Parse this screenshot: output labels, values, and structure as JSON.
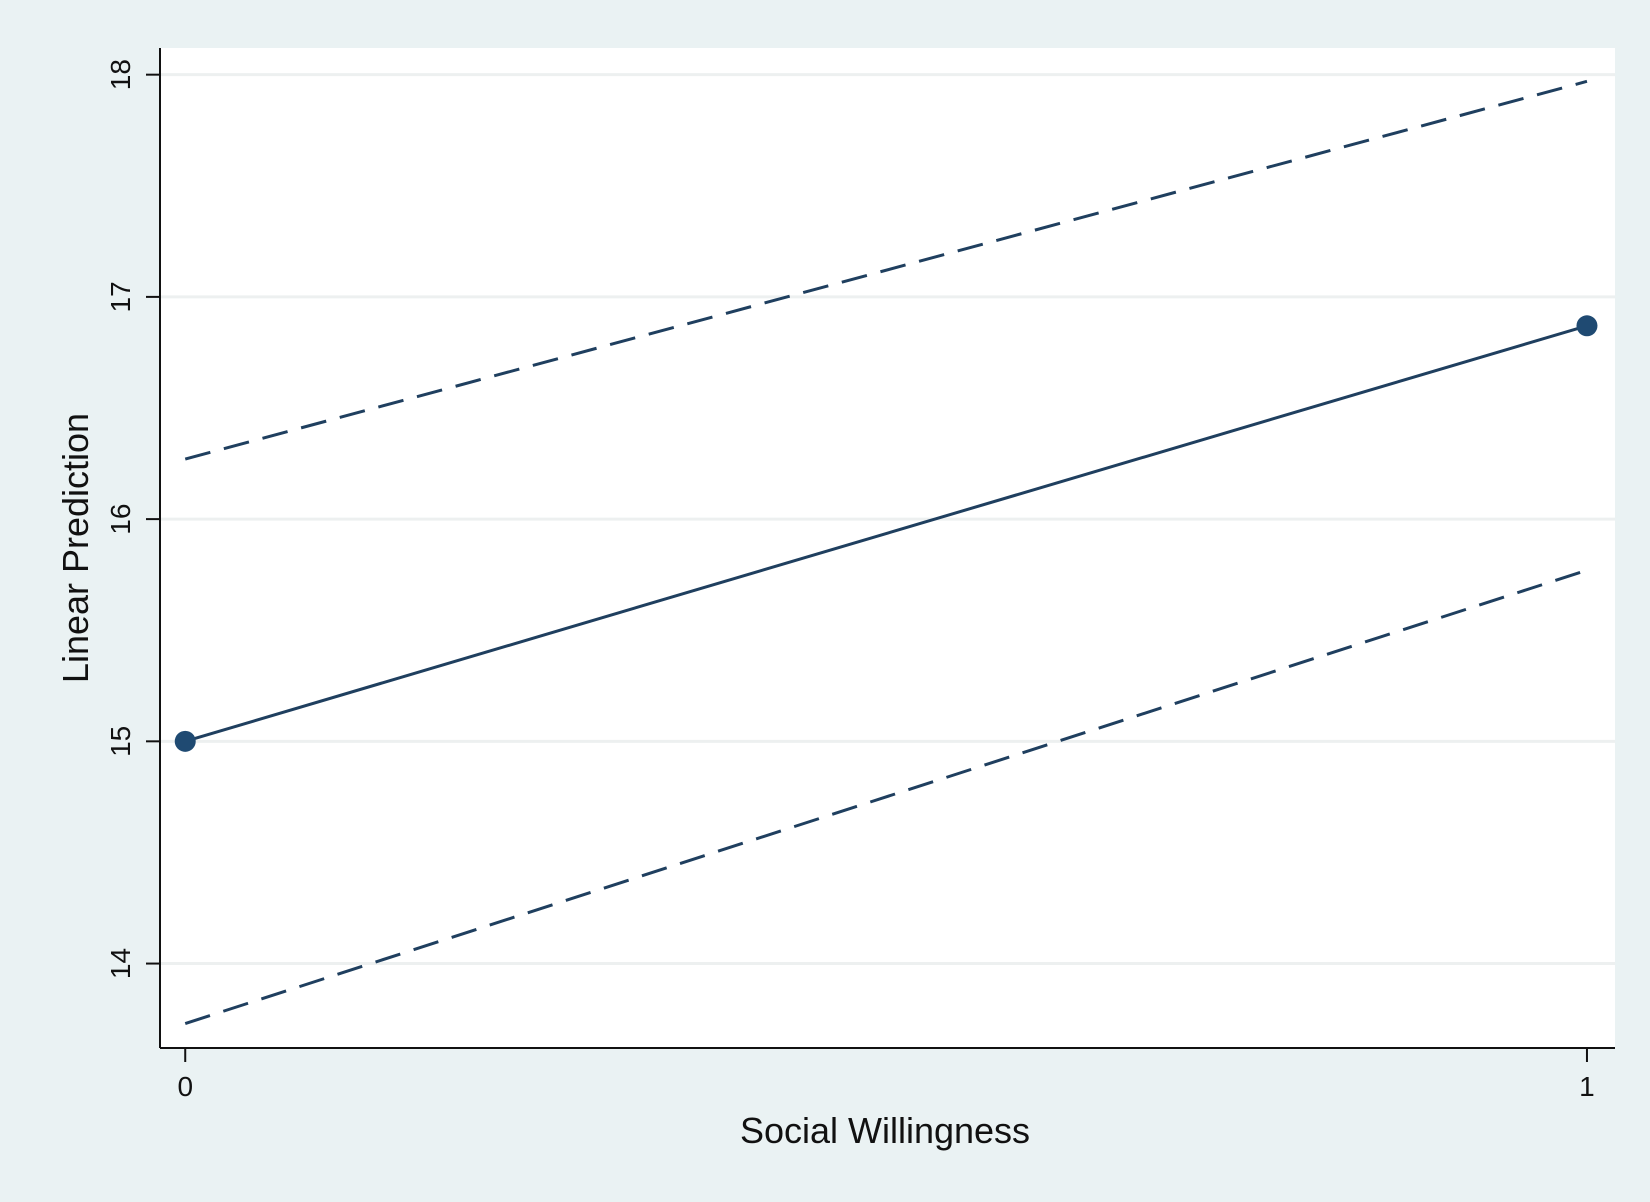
{
  "chart_data": {
    "type": "line",
    "title": "",
    "xlabel": "Social Willingness",
    "ylabel": "Linear Prediction",
    "x": [
      0,
      1
    ],
    "x_ticks": [
      "0",
      "1"
    ],
    "y_ticks": [
      "14",
      "15",
      "16",
      "17",
      "18"
    ],
    "xlim": [
      -0.018,
      1.02
    ],
    "ylim": [
      13.62,
      18.12
    ],
    "grid": true,
    "legend": "none",
    "series": [
      {
        "role": "prediction",
        "style": "solid",
        "markers": true,
        "values": [
          15.0,
          16.87
        ]
      },
      {
        "role": "upper-ci",
        "style": "dashed",
        "markers": false,
        "values": [
          16.27,
          17.97
        ]
      },
      {
        "role": "lower-ci",
        "style": "dashed",
        "markers": false,
        "values": [
          13.73,
          15.77
        ]
      }
    ],
    "colors": {
      "line": "#1f3f5f",
      "marker": "#1f4a72",
      "grid": "#edf0f0",
      "plot_background": "#ffffff",
      "outer_background": "#eaf2f3",
      "axis": "#111111"
    }
  }
}
